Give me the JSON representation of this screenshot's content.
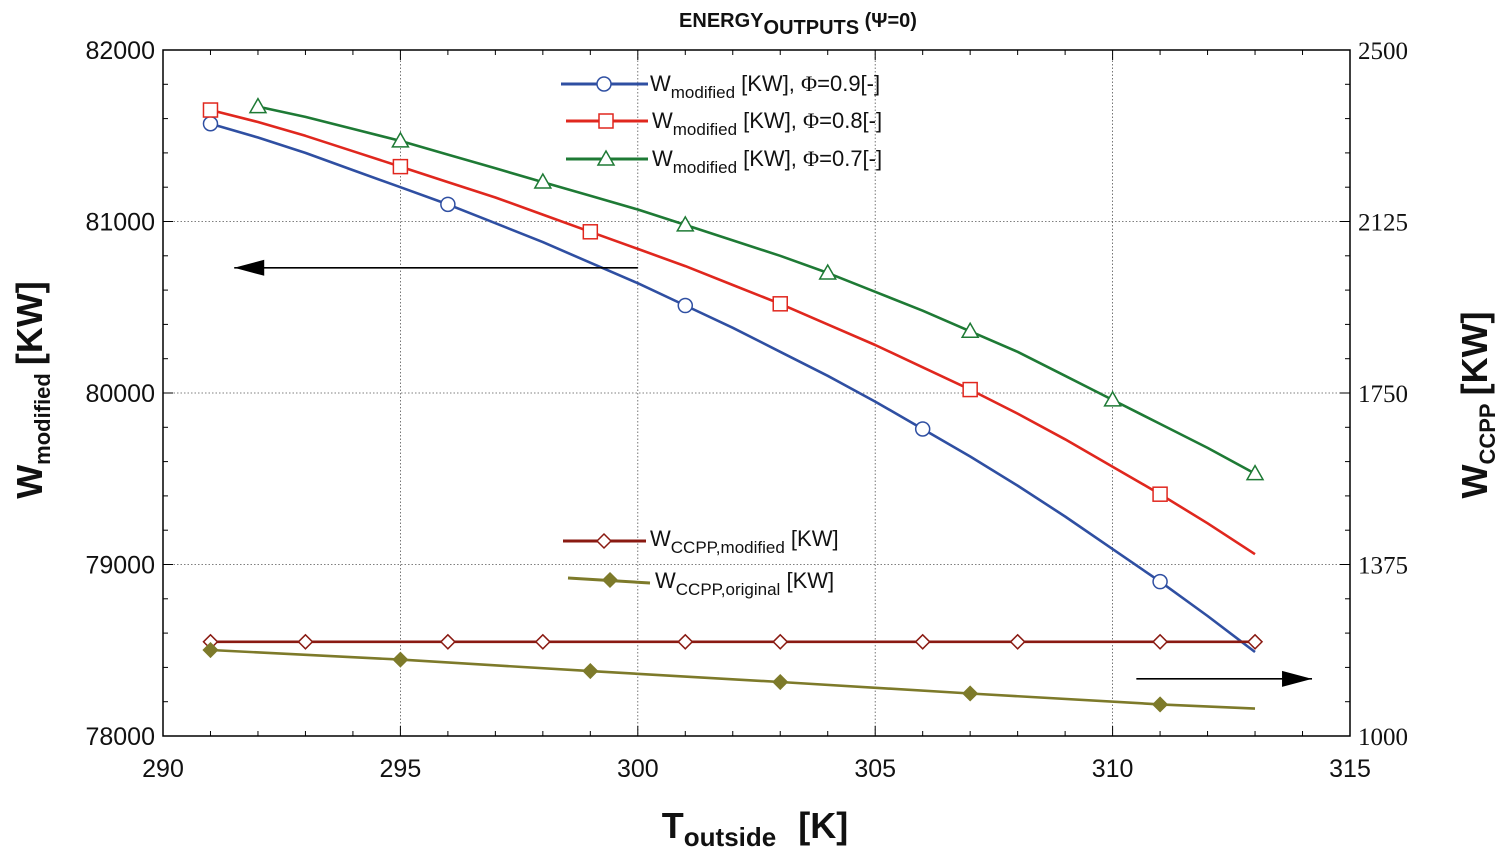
{
  "chart_data": {
    "type": "line",
    "title": {
      "main": "ENERGY",
      "sub": "OUTPUTS",
      "tail": " (Ψ=0)"
    },
    "xlabel": {
      "main": "T",
      "sub": "outside",
      "unit": "[K]"
    },
    "ylabel_left": {
      "main": "W",
      "sub": "modified",
      "unit": "[KW]"
    },
    "ylabel_right": {
      "main": "W",
      "sub": "CCPP",
      "unit": "[KW]"
    },
    "xlim": [
      290,
      315
    ],
    "ylim_left": [
      78000,
      82000
    ],
    "ylim_right": [
      1000,
      2500
    ],
    "x_ticks": [
      290,
      295,
      300,
      305,
      310,
      315
    ],
    "y_ticks_left": [
      78000,
      79000,
      80000,
      81000,
      82000
    ],
    "y_ticks_right": [
      1000,
      1375,
      1750,
      2125,
      2500
    ],
    "grid": true,
    "series": [
      {
        "name": "W_modified, Φ=0.9",
        "legend": {
          "main": "W",
          "sub": "modified",
          "unit": " [KW], ",
          "phi": "Φ",
          "tail": "=0.9[-]"
        },
        "axis": "left",
        "color": "#2f4fa2",
        "marker": "circle",
        "x": [
          291,
          292,
          293,
          294,
          295,
          296,
          297,
          298,
          299,
          300,
          301,
          302,
          303,
          304,
          305,
          306,
          307,
          308,
          309,
          310,
          311,
          312,
          313
        ],
        "values": [
          81570,
          81490,
          81400,
          81300,
          81200,
          81100,
          80990,
          80880,
          80760,
          80640,
          80510,
          80380,
          80240,
          80100,
          79950,
          79790,
          79630,
          79460,
          79280,
          79090,
          78900,
          78700,
          78490
        ],
        "marker_x": [
          291,
          296,
          301,
          306,
          311
        ]
      },
      {
        "name": "W_modified, Φ=0.8",
        "legend": {
          "main": "W",
          "sub": "modified",
          "unit": " [KW], ",
          "phi": "Φ",
          "tail": "=0.8[-]"
        },
        "axis": "left",
        "color": "#e0271e",
        "marker": "square",
        "x": [
          291,
          292,
          293,
          294,
          295,
          296,
          297,
          298,
          299,
          300,
          301,
          302,
          303,
          304,
          305,
          306,
          307,
          308,
          309,
          310,
          311,
          312,
          313
        ],
        "values": [
          81650,
          81580,
          81500,
          81410,
          81320,
          81230,
          81140,
          81040,
          80940,
          80840,
          80740,
          80630,
          80520,
          80400,
          80280,
          80150,
          80020,
          79880,
          79730,
          79570,
          79410,
          79240,
          79060
        ],
        "marker_x": [
          291,
          295,
          299,
          303,
          307,
          311
        ]
      },
      {
        "name": "W_modified, Φ=0.7",
        "legend": {
          "main": "W",
          "sub": "modified",
          "unit": " [KW], ",
          "phi": "Φ",
          "tail": "=0.7[-]"
        },
        "axis": "left",
        "color": "#1e7a35",
        "marker": "triangle",
        "x": [
          292,
          293,
          294,
          295,
          296,
          297,
          298,
          299,
          300,
          301,
          302,
          303,
          304,
          305,
          306,
          307,
          308,
          309,
          310,
          311,
          312,
          313
        ],
        "values": [
          81670,
          81610,
          81540,
          81470,
          81390,
          81310,
          81230,
          81150,
          81070,
          80980,
          80890,
          80800,
          80700,
          80590,
          80480,
          80360,
          80240,
          80100,
          79960,
          79820,
          79680,
          79530
        ],
        "marker_x": [
          292,
          295,
          298,
          301,
          304,
          307,
          310,
          313
        ]
      },
      {
        "name": "W_CCPP,modified",
        "legend": {
          "main": "W",
          "sub": "CCPP,modified",
          "unit": " [KW]"
        },
        "axis": "right",
        "color": "#8a1a12",
        "marker": "diamond-open",
        "x": [
          291,
          313
        ],
        "values": [
          1206,
          1206
        ],
        "marker_x": [
          291,
          293,
          296,
          298,
          301,
          303,
          306,
          308,
          311,
          313
        ]
      },
      {
        "name": "W_CCPP,original",
        "legend": {
          "main": "W",
          "sub": "CCPP,original",
          "unit": " [KW]"
        },
        "axis": "right",
        "color": "#7d7a2a",
        "marker": "diamond-filled",
        "x": [
          291,
          295,
          299,
          303,
          307,
          311,
          313
        ],
        "values": [
          1188,
          1167,
          1142,
          1118,
          1093,
          1069,
          1060
        ],
        "marker_x": [
          291,
          295,
          299,
          303,
          307,
          311
        ]
      }
    ],
    "annotations": [
      {
        "type": "arrow",
        "direction": "left",
        "meaning": "Φ curves use left axis",
        "from": [
          300,
          80730
        ],
        "to": [
          291.5,
          80730
        ]
      },
      {
        "type": "arrow",
        "direction": "right",
        "meaning": "W_CCPP curves use right axis",
        "from": [
          310.5,
          1125
        ],
        "to": [
          314.2,
          1125
        ]
      }
    ]
  }
}
